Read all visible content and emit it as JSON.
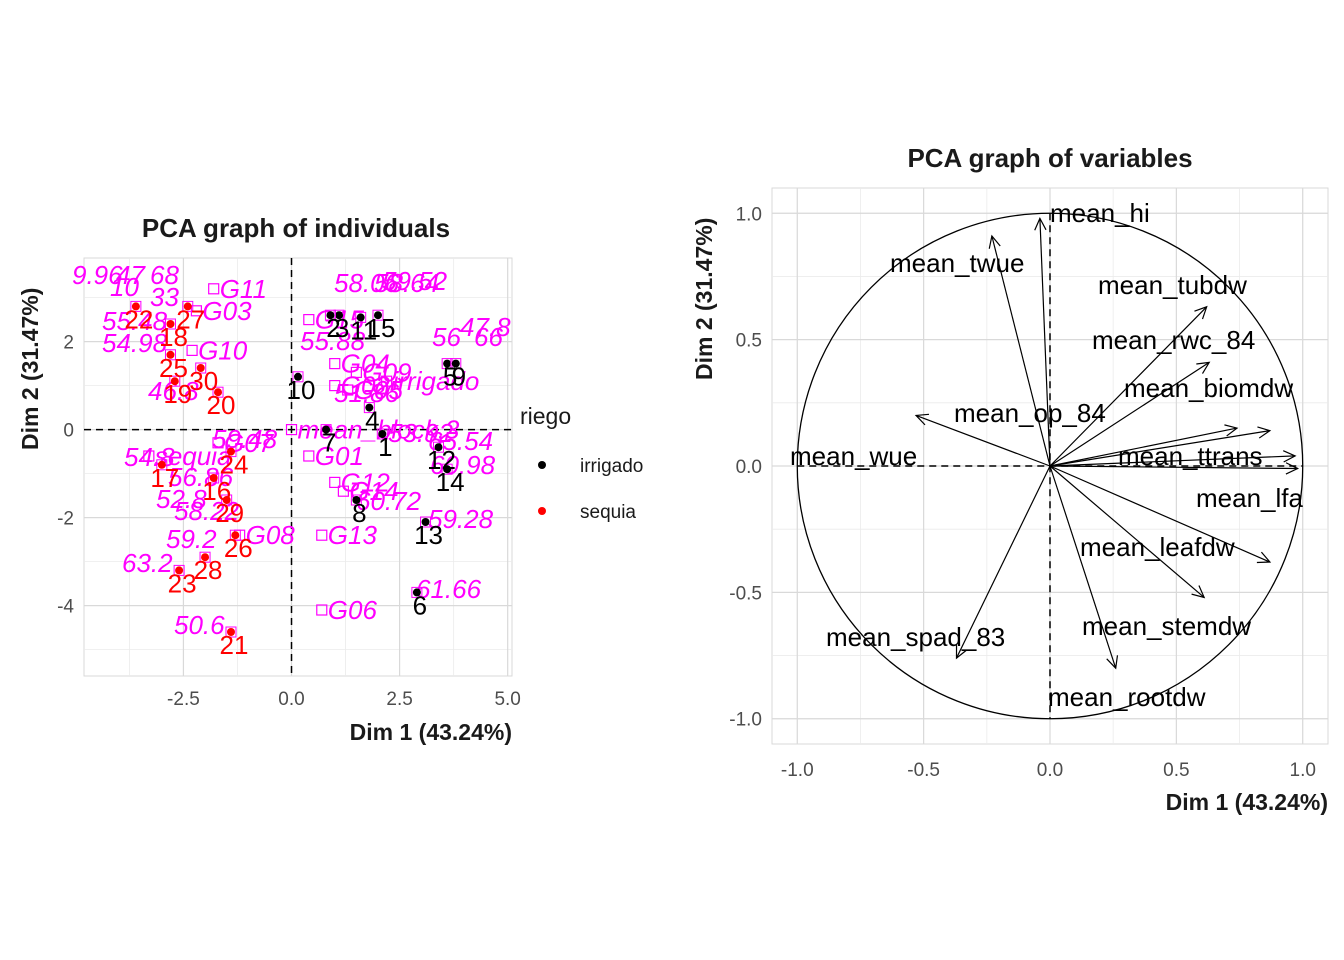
{
  "chart_data": [
    {
      "type": "scatter",
      "title": "PCA graph of individuals",
      "xlabel": "Dim 1 (43.24%)",
      "ylabel": "Dim 2 (31.47%)",
      "xlim": [
        -4.8,
        5.1
      ],
      "ylim": [
        -5.6,
        3.9
      ],
      "xticks": [
        "-2.5",
        "0.0",
        "2.5",
        "5.0"
      ],
      "yticks": [
        "-4",
        "-2",
        "0",
        "2"
      ],
      "legend_title": "riego",
      "legend_position": "right",
      "legend": [
        {
          "label": "irrigado",
          "color": "#000000"
        },
        {
          "label": "sequia",
          "color": "#ff0000"
        }
      ],
      "individuals": [
        {
          "label": "3",
          "group": "irrigado",
          "x": 1.1,
          "y": 2.6
        },
        {
          "label": "11",
          "group": "irrigado",
          "x": 1.6,
          "y": 2.55
        },
        {
          "label": "15",
          "group": "irrigado",
          "x": 2.0,
          "y": 2.6
        },
        {
          "label": "10",
          "group": "irrigado",
          "x": 0.15,
          "y": 1.2
        },
        {
          "label": "5",
          "group": "irrigado",
          "x": 3.6,
          "y": 1.5
        },
        {
          "label": "9",
          "group": "irrigado",
          "x": 3.8,
          "y": 1.5
        },
        {
          "label": "1",
          "group": "irrigado",
          "x": 2.1,
          "y": -0.1
        },
        {
          "label": "4",
          "group": "irrigado",
          "x": 1.8,
          "y": 0.5
        },
        {
          "label": "12",
          "group": "irrigado",
          "x": 3.4,
          "y": -0.4
        },
        {
          "label": "14",
          "group": "irrigado",
          "x": 3.6,
          "y": -0.9
        },
        {
          "label": "8",
          "group": "irrigado",
          "x": 1.5,
          "y": -1.6
        },
        {
          "label": "13",
          "group": "irrigado",
          "x": 3.1,
          "y": -2.1
        },
        {
          "label": "6",
          "group": "irrigado",
          "x": 2.9,
          "y": -3.7
        },
        {
          "label": "7",
          "group": "irrigado",
          "x": 0.8,
          "y": 0.0
        },
        {
          "label": "2",
          "group": "irrigado",
          "x": 0.9,
          "y": 2.6
        },
        {
          "label": "27",
          "group": "sequia",
          "x": -2.4,
          "y": 2.8
        },
        {
          "label": "22",
          "group": "sequia",
          "x": -3.6,
          "y": 2.8
        },
        {
          "label": "18",
          "group": "sequia",
          "x": -2.8,
          "y": 2.4
        },
        {
          "label": "25",
          "group": "sequia",
          "x": -2.8,
          "y": 1.7
        },
        {
          "label": "30",
          "group": "sequia",
          "x": -2.1,
          "y": 1.4
        },
        {
          "label": "19",
          "group": "sequia",
          "x": -2.7,
          "y": 1.1
        },
        {
          "label": "20",
          "group": "sequia",
          "x": -1.7,
          "y": 0.85
        },
        {
          "label": "24",
          "group": "sequia",
          "x": -1.4,
          "y": -0.5
        },
        {
          "label": "17",
          "group": "sequia",
          "x": -3.0,
          "y": -0.8
        },
        {
          "label": "16",
          "group": "sequia",
          "x": -1.8,
          "y": -1.1
        },
        {
          "label": "29",
          "group": "sequia",
          "x": -1.5,
          "y": -1.6
        },
        {
          "label": "26",
          "group": "sequia",
          "x": -1.3,
          "y": -2.4
        },
        {
          "label": "28",
          "group": "sequia",
          "x": -2.0,
          "y": -2.9
        },
        {
          "label": "23",
          "group": "sequia",
          "x": -2.6,
          "y": -3.2
        },
        {
          "label": "21",
          "group": "sequia",
          "x": -1.4,
          "y": -4.6
        }
      ],
      "supplementary_quali": [
        {
          "label": "G11",
          "x": -1.8,
          "y": 3.2
        },
        {
          "label": "G03",
          "x": -2.2,
          "y": 2.7
        },
        {
          "label": "G10",
          "x": -2.3,
          "y": 1.8
        },
        {
          "label": "G15",
          "x": 0.4,
          "y": 2.5
        },
        {
          "label": "G04",
          "x": 1.0,
          "y": 1.5
        },
        {
          "label": "G09",
          "x": 1.5,
          "y": 1.3
        },
        {
          "label": "G02",
          "x": 1.0,
          "y": 1.0
        },
        {
          "label": "G05",
          "x": 1.3,
          "y": 0.9
        },
        {
          "label": "irrigado",
          "x": 2.2,
          "y": 1.1
        },
        {
          "label": "mean_block.3",
          "x": 0.0,
          "y": 0.0
        },
        {
          "label": "sequia",
          "x": -3.3,
          "y": -0.6
        },
        {
          "label": "G01",
          "x": 0.4,
          "y": -0.6
        },
        {
          "label": "G12",
          "x": 1.0,
          "y": -1.2
        },
        {
          "label": "G14",
          "x": 1.2,
          "y": -1.4
        },
        {
          "label": "G13",
          "x": 0.7,
          "y": -2.4
        },
        {
          "label": "G08",
          "x": -1.2,
          "y": -2.4
        },
        {
          "label": "G06",
          "x": 0.7,
          "y": -4.1
        },
        {
          "label": "G07",
          "x": -1.7,
          "y": -0.3
        }
      ],
      "supplementary_quanti_labels": [
        "9.96",
        "68",
        "47",
        "10",
        "33",
        "55.48",
        "54.98",
        "46.8",
        "58.06",
        "59.52",
        "58.64",
        "56",
        "47.8",
        "66",
        "55.88",
        "51.86",
        "53.92",
        "65.54",
        "60.98",
        "60.72",
        "59.28",
        "61.66",
        "59.48",
        "54.8",
        "56.86",
        "52.8",
        "58.22",
        "59.2",
        "63.2",
        "50.6"
      ]
    },
    {
      "type": "line",
      "title": "PCA graph of variables",
      "xlabel": "Dim 1 (43.24%)",
      "ylabel": "Dim 2 (31.47%)",
      "xlim": [
        -1.1,
        1.1
      ],
      "ylim": [
        -1.1,
        1.1
      ],
      "xticks": [
        "-1.0",
        "-0.5",
        "0.0",
        "0.5",
        "1.0"
      ],
      "yticks": [
        "-1.0",
        "-0.5",
        "0.0",
        "0.5",
        "1.0"
      ],
      "variables": [
        {
          "name": "mean_hi",
          "x": -0.04,
          "y": 0.98
        },
        {
          "name": "mean_twue",
          "x": -0.23,
          "y": 0.91
        },
        {
          "name": "mean_tubdw",
          "x": 0.62,
          "y": 0.63
        },
        {
          "name": "mean_rwc_84",
          "x": 0.63,
          "y": 0.41
        },
        {
          "name": "mean_biomdw",
          "x": 0.87,
          "y": 0.14
        },
        {
          "name": "mean_op_84",
          "x": 0.74,
          "y": 0.15
        },
        {
          "name": "mean_wue",
          "x": -0.53,
          "y": 0.2
        },
        {
          "name": "mean_ttrans",
          "x": 0.97,
          "y": 0.04
        },
        {
          "name": "mean_lfa",
          "x": 0.98,
          "y": -0.01
        },
        {
          "name": "mean_leafdw",
          "x": 0.87,
          "y": -0.38
        },
        {
          "name": "mean_stemdw",
          "x": 0.61,
          "y": -0.52
        },
        {
          "name": "mean_spad_83",
          "x": -0.37,
          "y": -0.76
        },
        {
          "name": "mean_rootdw",
          "x": 0.26,
          "y": -0.8
        }
      ]
    }
  ],
  "colors": {
    "irrigado": "#000000",
    "sequia": "#ff0000",
    "supplementary": "#ff00ff",
    "variables": "#000000"
  }
}
